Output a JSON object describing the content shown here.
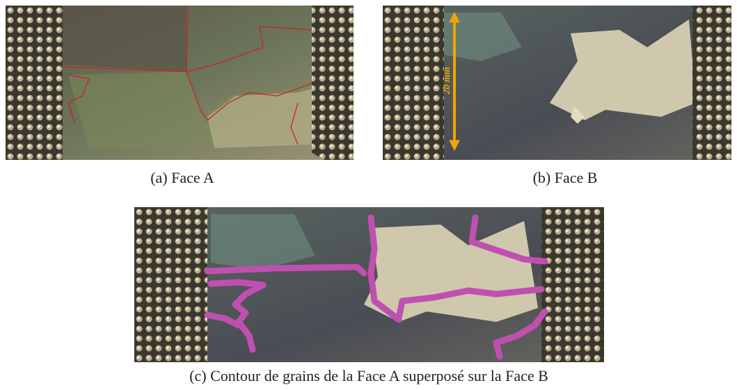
{
  "figure": {
    "subfigures": [
      {
        "caption": "(a) Face A"
      },
      {
        "caption": "(b) Face B",
        "annotation": "20 mm"
      },
      {
        "caption": "(c) Contour de grains de la Face A superposé sur la Face B"
      }
    ]
  }
}
